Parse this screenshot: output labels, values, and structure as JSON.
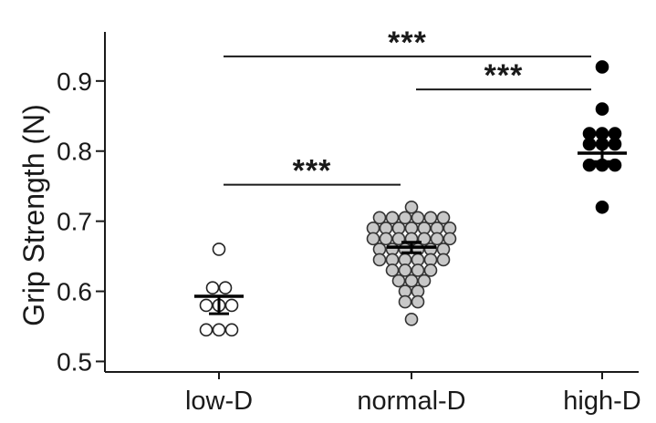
{
  "chart_data": {
    "type": "scatter",
    "title": "",
    "xlabel": "",
    "ylabel": "Grip Strength (N)",
    "ylim": [
      0.485,
      0.97
    ],
    "yticks": [
      0.5,
      0.6,
      0.7,
      0.8,
      0.9
    ],
    "ytick_labels": [
      "0.5",
      "0.6",
      "0.7",
      "0.8",
      "0.9"
    ],
    "grid": false,
    "legend": "none",
    "categories": [
      "low-D",
      "normal-D",
      "high-D"
    ],
    "series": [
      {
        "category": "low-D",
        "fill": "#ffffff",
        "stroke": "#222222",
        "mean": 0.593,
        "error_low": 0.568,
        "values": [
          0.66,
          0.605,
          0.605,
          0.58,
          0.58,
          0.58,
          0.545,
          0.545,
          0.545
        ]
      },
      {
        "category": "normal-D",
        "fill": "#c8c8c8",
        "stroke": "#333333",
        "mean": 0.663,
        "error_low": 0.655,
        "error_high": 0.67,
        "values": [
          0.72,
          0.705,
          0.705,
          0.705,
          0.705,
          0.705,
          0.705,
          0.69,
          0.69,
          0.69,
          0.69,
          0.69,
          0.69,
          0.69,
          0.675,
          0.675,
          0.675,
          0.675,
          0.675,
          0.675,
          0.675,
          0.66,
          0.66,
          0.66,
          0.66,
          0.66,
          0.66,
          0.645,
          0.645,
          0.645,
          0.645,
          0.645,
          0.645,
          0.63,
          0.63,
          0.63,
          0.63,
          0.615,
          0.615,
          0.615,
          0.6,
          0.6,
          0.585,
          0.585,
          0.56
        ]
      },
      {
        "category": "high-D",
        "fill": "#000000",
        "stroke": "#000000",
        "mean": 0.797,
        "error_low": 0.785,
        "error_high": 0.81,
        "values": [
          0.92,
          0.86,
          0.825,
          0.825,
          0.825,
          0.81,
          0.81,
          0.81,
          0.78,
          0.78,
          0.78,
          0.72
        ]
      }
    ],
    "significance": [
      {
        "from": "low-D",
        "to": "normal-D",
        "y": 0.752,
        "label": "***"
      },
      {
        "from": "normal-D",
        "to": "high-D",
        "y": 0.888,
        "label": "***"
      },
      {
        "from": "low-D",
        "to": "high-D",
        "y": 0.935,
        "label": "***"
      }
    ]
  }
}
